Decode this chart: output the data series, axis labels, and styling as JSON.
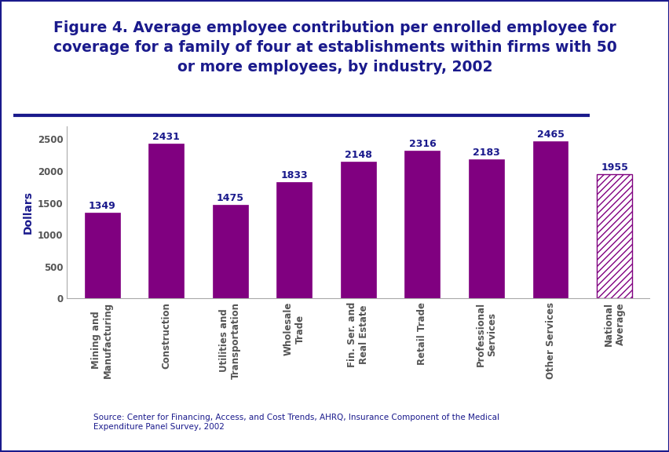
{
  "title": "Figure 4. Average employee contribution per enrolled employee for\ncoverage for a family of four at establishments within firms with 50\nor more employees, by industry, 2002",
  "categories": [
    "Mining and\nManufacturing",
    "Construction",
    "Utilities and\nTransportation",
    "Wholesale\nTrade",
    "Fin. Ser. and\nReal Estate",
    "Retail Trade",
    "Professional\nServices",
    "Other Services",
    "National\nAverage"
  ],
  "values": [
    1349,
    2431,
    1475,
    1833,
    2148,
    2316,
    2183,
    2465,
    1955
  ],
  "bar_color": "#800080",
  "national_avg_hatch": "////",
  "ylabel": "Dollars",
  "ylim": [
    0,
    2700
  ],
  "yticks": [
    0,
    500,
    1000,
    1500,
    2000,
    2500
  ],
  "source_text": "Source: Center for Financing, Access, and Cost Trends, AHRQ, Insurance Component of the Medical\nExpenditure Panel Survey, 2002",
  "title_color": "#1a1a8c",
  "axis_label_color": "#1a1a8c",
  "tick_label_color": "#1a1a8c",
  "background_color": "#ffffff",
  "plot_bg_color": "#ffffff",
  "border_color": "#1a1a8c",
  "title_fontsize": 13.5,
  "label_fontsize": 8.5,
  "value_fontsize": 9,
  "ylabel_fontsize": 10,
  "bar_width": 0.55
}
